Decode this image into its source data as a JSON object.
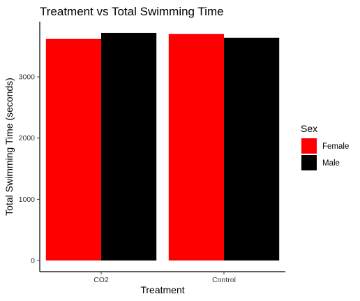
{
  "chart_data": {
    "type": "bar",
    "title": "Treatment vs Total Swimming Time",
    "xlabel": "Treatment",
    "ylabel": "Total Swimming Time (seconds)",
    "categories": [
      "CO2",
      "Control"
    ],
    "series": [
      {
        "name": "Female",
        "color": "#ff0000",
        "values": [
          3620,
          3700
        ]
      },
      {
        "name": "Male",
        "color": "#000000",
        "values": [
          3720,
          3640
        ]
      }
    ],
    "ylim": [
      0,
      3720
    ],
    "yticks": [
      0,
      1000,
      2000,
      3000
    ],
    "legend_title": "Sex",
    "legend_position": "right",
    "grid": false
  }
}
